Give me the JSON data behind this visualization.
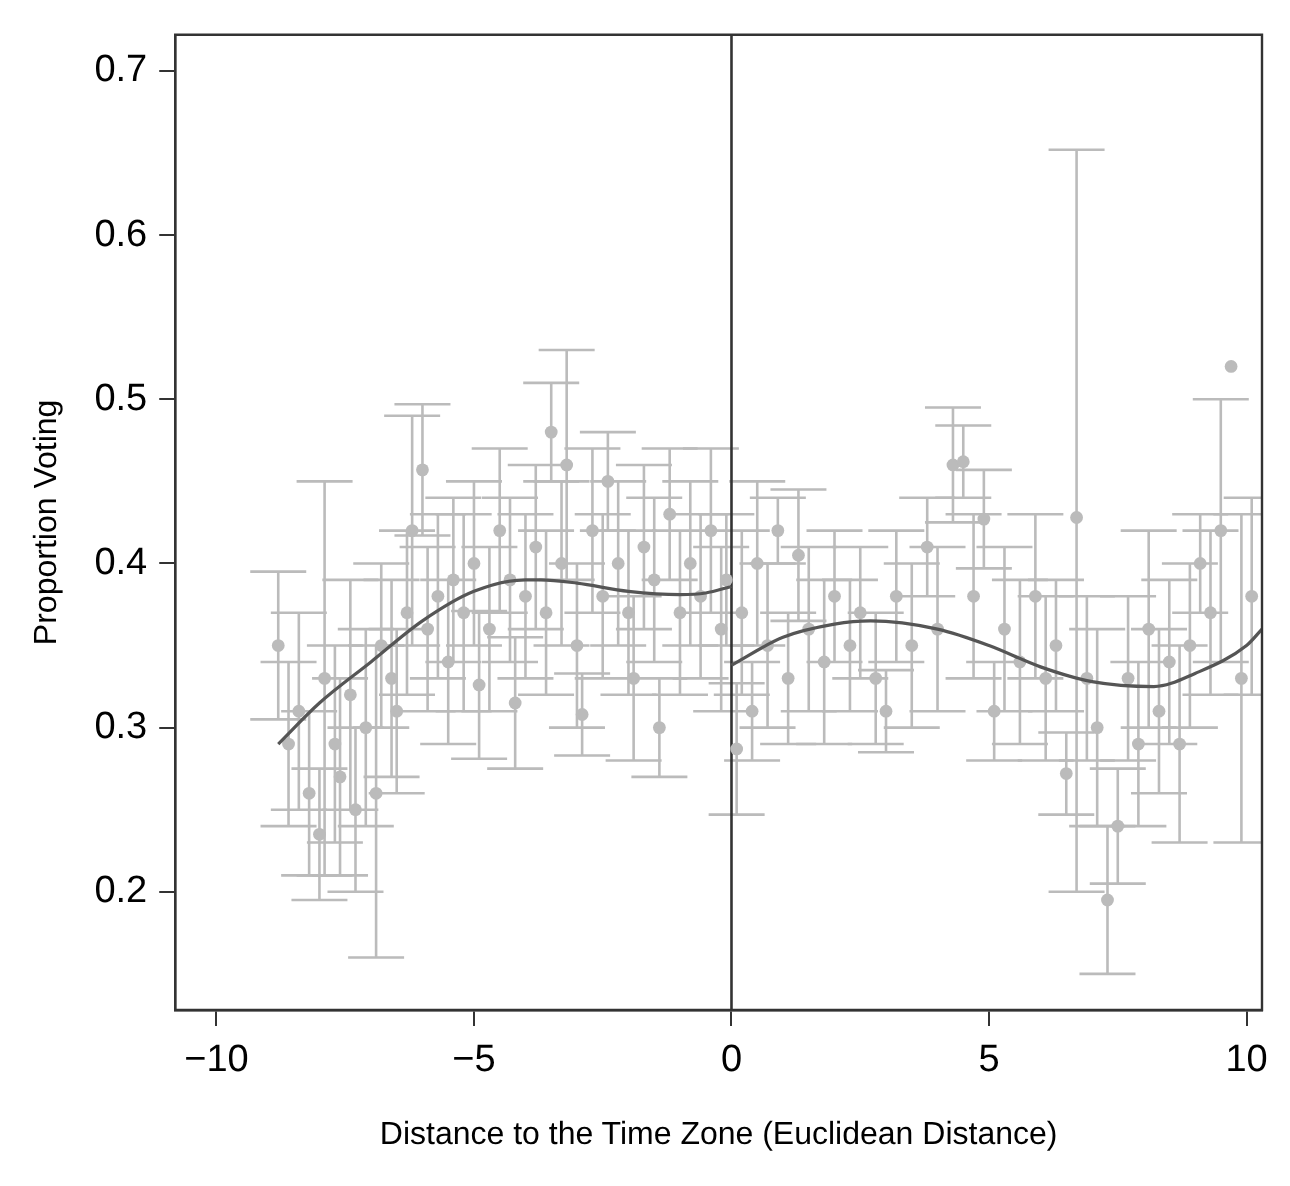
{
  "chart_data": {
    "type": "scatter",
    "xlabel": "Distance to the Time Zone (Euclidean Distance)",
    "ylabel": "Proportion Voting",
    "xlim": [
      -10.8,
      10.3
    ],
    "xticks": [
      -10,
      -5,
      0,
      5,
      10
    ],
    "ylim": [
      0.128,
      0.722
    ],
    "yticks": [
      0.2,
      0.3,
      0.4,
      0.5,
      0.6,
      0.7
    ],
    "marker": "circle",
    "legend": false,
    "ref_lines": [
      {
        "axis": "x",
        "value": 0,
        "color": "#333333"
      }
    ],
    "series": [
      {
        "color": "#bbbbbb",
        "x": [
          -8.8,
          -8.6,
          -8.4,
          -8.2,
          -8.0,
          -7.9,
          -7.7,
          -7.6,
          -7.4,
          -7.3,
          -7.1,
          -6.9,
          -6.8,
          -6.6,
          -6.5,
          -6.3,
          -6.2,
          -6.0,
          -5.9,
          -5.7,
          -5.5,
          -5.4,
          -5.2,
          -5.0,
          -4.9,
          -4.7,
          -4.5,
          -4.3,
          -4.2,
          -4.0,
          -3.8,
          -3.6,
          -3.5,
          -3.3,
          -3.2,
          -3.0,
          -2.9,
          -2.7,
          -2.5,
          -2.4,
          -2.2,
          -2.0,
          -1.9,
          -1.7,
          -1.5,
          -1.4,
          -1.2,
          -1.0,
          -0.8,
          -0.6,
          -0.4,
          -0.2,
          -0.1,
          0.1,
          0.2,
          0.4,
          0.5,
          0.7,
          0.9,
          1.1,
          1.3,
          1.5,
          1.8,
          2.0,
          2.3,
          2.5,
          2.8,
          3.0,
          3.2,
          3.5,
          3.8,
          4.0,
          4.3,
          4.5,
          4.7,
          4.9,
          5.1,
          5.3,
          5.6,
          5.9,
          6.1,
          6.3,
          6.5,
          6.7,
          6.9,
          7.1,
          7.3,
          7.5,
          7.7,
          7.9,
          8.1,
          8.3,
          8.5,
          8.7,
          8.9,
          9.1,
          9.3,
          9.5,
          9.7,
          9.9,
          10.1
        ],
        "values": [
          0.35,
          0.29,
          0.31,
          0.26,
          0.235,
          0.33,
          0.29,
          0.27,
          0.32,
          0.25,
          0.3,
          0.26,
          0.35,
          0.33,
          0.31,
          0.37,
          0.42,
          0.457,
          0.36,
          0.38,
          0.34,
          0.39,
          0.37,
          0.4,
          0.326,
          0.36,
          0.42,
          0.39,
          0.315,
          0.38,
          0.41,
          0.37,
          0.48,
          0.4,
          0.46,
          0.35,
          0.308,
          0.42,
          0.38,
          0.45,
          0.4,
          0.37,
          0.33,
          0.41,
          0.39,
          0.3,
          0.43,
          0.37,
          0.4,
          0.38,
          0.42,
          0.36,
          0.39,
          0.287,
          0.37,
          0.31,
          0.4,
          0.35,
          0.42,
          0.33,
          0.405,
          0.36,
          0.34,
          0.38,
          0.35,
          0.37,
          0.33,
          0.31,
          0.38,
          0.35,
          0.41,
          0.36,
          0.46,
          0.462,
          0.38,
          0.427,
          0.31,
          0.36,
          0.34,
          0.38,
          0.33,
          0.35,
          0.272,
          0.428,
          0.33,
          0.3,
          0.195,
          0.24,
          0.33,
          0.29,
          0.36,
          0.31,
          0.34,
          0.29,
          0.35,
          0.4,
          0.37,
          0.42,
          0.52,
          0.33,
          0.38
        ],
        "errors": [
          0.045,
          0.05,
          0.06,
          0.05,
          0.04,
          0.12,
          0.06,
          0.06,
          0.07,
          0.05,
          0.06,
          [
            0.16,
            0.35
          ],
          0.05,
          0.06,
          0.05,
          0.05,
          0.07,
          0.04,
          0.05,
          0.05,
          0.05,
          0.05,
          0.06,
          0.05,
          0.045,
          0.05,
          0.05,
          0.05,
          0.04,
          0.05,
          0.05,
          0.05,
          0.03,
          0.05,
          0.07,
          0.05,
          0.025,
          0.05,
          0.05,
          0.03,
          0.05,
          0.05,
          0.05,
          0.05,
          0.05,
          0.03,
          0.04,
          0.05,
          0.05,
          0.05,
          0.05,
          0.05,
          0.04,
          0.04,
          0.05,
          0.03,
          0.05,
          0.05,
          0.02,
          0.04,
          0.04,
          0.05,
          0.05,
          0.04,
          0.04,
          0.04,
          0.04,
          0.025,
          0.04,
          0.05,
          0.03,
          0.05,
          0.035,
          0.022,
          0.05,
          0.03,
          0.03,
          0.05,
          0.05,
          0.05,
          0.05,
          0.04,
          0.025,
          [
            0.2,
            0.652
          ],
          0.05,
          0.06,
          0.045,
          0.035,
          0.05,
          0.05,
          0.06,
          0.05,
          0.05,
          0.06,
          0.05,
          0.03,
          0.05,
          0.08,
          null,
          0.1,
          0.06
        ]
      },
      {
        "type": "line",
        "color": "#555555",
        "marker": "none",
        "x": [
          -8.8,
          -8,
          -7,
          -6,
          -5,
          -4,
          -3.7,
          -3,
          -2,
          -1,
          -0.5,
          0
        ],
        "values": [
          0.29,
          0.315,
          0.34,
          0.365,
          0.383,
          0.39,
          0.39,
          0.388,
          0.383,
          0.381,
          0.382,
          0.386
        ]
      },
      {
        "type": "line",
        "color": "#555555",
        "marker": "none",
        "x": [
          0,
          1,
          2,
          2.7,
          4,
          5,
          6,
          7,
          8.2,
          9,
          10,
          10.3
        ],
        "values": [
          0.338,
          0.355,
          0.363,
          0.365,
          0.36,
          0.35,
          0.337,
          0.328,
          0.325,
          0.333,
          0.35,
          0.36
        ]
      }
    ]
  }
}
